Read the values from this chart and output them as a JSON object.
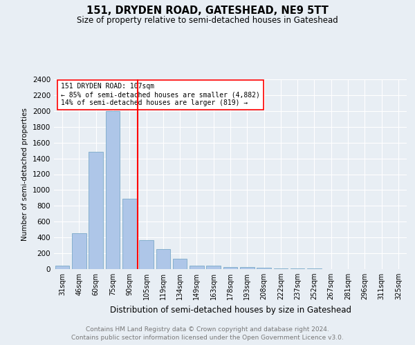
{
  "title": "151, DRYDEN ROAD, GATESHEAD, NE9 5TT",
  "subtitle": "Size of property relative to semi-detached houses in Gateshead",
  "xlabel": "Distribution of semi-detached houses by size in Gateshead",
  "ylabel": "Number of semi-detached properties",
  "categories": [
    "31sqm",
    "46sqm",
    "60sqm",
    "75sqm",
    "90sqm",
    "105sqm",
    "119sqm",
    "134sqm",
    "149sqm",
    "163sqm",
    "178sqm",
    "193sqm",
    "208sqm",
    "222sqm",
    "237sqm",
    "252sqm",
    "267sqm",
    "281sqm",
    "296sqm",
    "311sqm",
    "325sqm"
  ],
  "values": [
    40,
    450,
    1480,
    2000,
    890,
    370,
    250,
    130,
    40,
    40,
    30,
    25,
    15,
    10,
    10,
    5,
    3,
    2,
    1,
    1,
    1
  ],
  "bar_color": "#aec6e8",
  "bar_edge_color": "#7aaac8",
  "red_line_index": 5,
  "property_label": "151 DRYDEN ROAD: 107sqm",
  "annotation_line1": "← 85% of semi-detached houses are smaller (4,882)",
  "annotation_line2": "14% of semi-detached houses are larger (819) →",
  "ylim": [
    0,
    2400
  ],
  "yticks": [
    0,
    200,
    400,
    600,
    800,
    1000,
    1200,
    1400,
    1600,
    1800,
    2000,
    2200,
    2400
  ],
  "footer1": "Contains HM Land Registry data © Crown copyright and database right 2024.",
  "footer2": "Contains public sector information licensed under the Open Government Licence v3.0.",
  "bg_color": "#e8eef4",
  "grid_color": "#ffffff"
}
